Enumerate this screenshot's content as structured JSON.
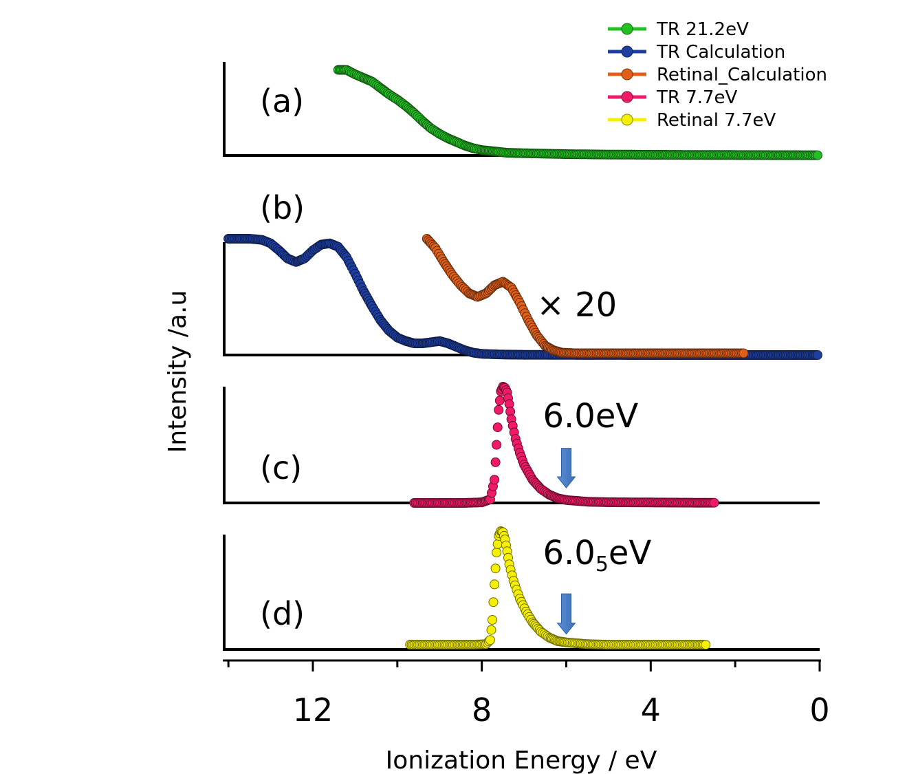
{
  "chart_data": {
    "type": "scatter",
    "title": "",
    "xlabel": "Ionization Energy / eV",
    "ylabel": "Intensity /a.u",
    "x_reversed": true,
    "xlim": [
      14.1,
      0
    ],
    "xticks_major": [
      12,
      8,
      4,
      0
    ],
    "xticks_minor": [
      14,
      10,
      6,
      2
    ],
    "grid": false,
    "legend_position": "top-right",
    "legend": [
      {
        "name": "TR 21.2eV",
        "color": "#22c022"
      },
      {
        "name": "TR Calculation",
        "color": "#1f3fa0"
      },
      {
        "name": "Retinal_Calculation",
        "color": "#e0601a"
      },
      {
        "name": "TR 7.7eV",
        "color": "#f01a68"
      },
      {
        "name": "Retinal 7.7eV",
        "color": "#f5f000"
      }
    ],
    "panels": [
      {
        "label": "(a)",
        "ylim": [
          0,
          1
        ],
        "annotations": [],
        "series": [
          {
            "name": "TR 21.2eV",
            "color": "#22c022",
            "points": [
              [
                11.4,
                0.95
              ],
              [
                11.2,
                0.95
              ],
              [
                11.0,
                0.9
              ],
              [
                10.8,
                0.86
              ],
              [
                10.6,
                0.82
              ],
              [
                10.4,
                0.75
              ],
              [
                10.2,
                0.68
              ],
              [
                10.0,
                0.62
              ],
              [
                9.8,
                0.55
              ],
              [
                9.6,
                0.47
              ],
              [
                9.4,
                0.38
              ],
              [
                9.2,
                0.3
              ],
              [
                9.0,
                0.24
              ],
              [
                8.8,
                0.19
              ],
              [
                8.6,
                0.15
              ],
              [
                8.4,
                0.11
              ],
              [
                8.2,
                0.08
              ],
              [
                8.0,
                0.06
              ],
              [
                7.8,
                0.05
              ],
              [
                7.6,
                0.04
              ],
              [
                7.4,
                0.03
              ],
              [
                7.0,
                0.025
              ],
              [
                6.5,
                0.02
              ],
              [
                6.0,
                0.015
              ],
              [
                5.0,
                0.01
              ],
              [
                4.0,
                0.008
              ],
              [
                3.0,
                0.006
              ],
              [
                2.0,
                0.005
              ],
              [
                1.0,
                0.004
              ],
              [
                0.05,
                0.003
              ]
            ]
          }
        ]
      },
      {
        "label": "(b)",
        "ylim": [
          0,
          1
        ],
        "annotations": [
          {
            "text": "× 20",
            "x": 5.95,
            "y": 0.43
          }
        ],
        "series": [
          {
            "name": "TR Calculation",
            "color": "#1f3fa0",
            "points": [
              [
                14.0,
                1.0
              ],
              [
                13.5,
                1.0
              ],
              [
                13.2,
                0.99
              ],
              [
                13.0,
                0.96
              ],
              [
                12.8,
                0.9
              ],
              [
                12.6,
                0.83
              ],
              [
                12.4,
                0.8
              ],
              [
                12.2,
                0.83
              ],
              [
                12.0,
                0.9
              ],
              [
                11.8,
                0.95
              ],
              [
                11.6,
                0.96
              ],
              [
                11.4,
                0.93
              ],
              [
                11.2,
                0.84
              ],
              [
                11.0,
                0.7
              ],
              [
                10.8,
                0.55
              ],
              [
                10.6,
                0.42
              ],
              [
                10.4,
                0.3
              ],
              [
                10.2,
                0.21
              ],
              [
                10.0,
                0.15
              ],
              [
                9.8,
                0.12
              ],
              [
                9.6,
                0.1
              ],
              [
                9.4,
                0.1
              ],
              [
                9.2,
                0.11
              ],
              [
                9.0,
                0.12
              ],
              [
                8.8,
                0.1
              ],
              [
                8.6,
                0.07
              ],
              [
                8.4,
                0.04
              ],
              [
                8.2,
                0.02
              ],
              [
                8.0,
                0.01
              ],
              [
                7.5,
                0.004
              ],
              [
                7.0,
                0.002
              ],
              [
                6.0,
                0.001
              ],
              [
                4.0,
                0.0
              ],
              [
                2.0,
                0.0
              ],
              [
                0.05,
                0.0
              ]
            ]
          },
          {
            "name": "Retinal_Calculation",
            "color": "#e0601a",
            "points": [
              [
                9.3,
                1.0
              ],
              [
                9.1,
                0.92
              ],
              [
                8.9,
                0.8
              ],
              [
                8.7,
                0.69
              ],
              [
                8.5,
                0.6
              ],
              [
                8.3,
                0.53
              ],
              [
                8.1,
                0.5
              ],
              [
                7.9,
                0.53
              ],
              [
                7.7,
                0.6
              ],
              [
                7.5,
                0.63
              ],
              [
                7.3,
                0.58
              ],
              [
                7.1,
                0.45
              ],
              [
                6.9,
                0.3
              ],
              [
                6.7,
                0.17
              ],
              [
                6.5,
                0.08
              ],
              [
                6.3,
                0.04
              ],
              [
                6.1,
                0.02
              ],
              [
                5.8,
                0.015
              ],
              [
                5.0,
                0.015
              ],
              [
                4.0,
                0.015
              ],
              [
                3.0,
                0.015
              ],
              [
                1.8,
                0.015
              ]
            ]
          }
        ]
      },
      {
        "label": "(c)",
        "ylim": [
          0,
          1
        ],
        "annotations": [
          {
            "text": "6.0eV",
            "x": 6.0,
            "arrow_top": 0.47,
            "arrow_bottom": 0.13,
            "label_y": 0.65
          }
        ],
        "series": [
          {
            "name": "TR 7.7eV",
            "color": "#f01a68",
            "points": [
              [
                9.6,
                0.0
              ],
              [
                9.0,
                0.0
              ],
              [
                8.4,
                0.0
              ],
              [
                8.0,
                0.005
              ],
              [
                7.8,
                0.03
              ],
              [
                7.7,
                0.2
              ],
              [
                7.65,
                0.5
              ],
              [
                7.6,
                0.8
              ],
              [
                7.55,
                0.96
              ],
              [
                7.5,
                1.0
              ],
              [
                7.45,
                0.99
              ],
              [
                7.4,
                0.95
              ],
              [
                7.35,
                0.85
              ],
              [
                7.3,
                0.72
              ],
              [
                7.2,
                0.55
              ],
              [
                7.1,
                0.43
              ],
              [
                7.0,
                0.33
              ],
              [
                6.8,
                0.2
              ],
              [
                6.6,
                0.12
              ],
              [
                6.4,
                0.07
              ],
              [
                6.2,
                0.04
              ],
              [
                6.0,
                0.025
              ],
              [
                5.5,
                0.01
              ],
              [
                5.0,
                0.006
              ],
              [
                4.0,
                0.004
              ],
              [
                3.0,
                0.002
              ],
              [
                2.5,
                0.002
              ]
            ]
          }
        ]
      },
      {
        "label": "(d)",
        "ylim": [
          0,
          1
        ],
        "annotations": [
          {
            "text": "6.0",
            "subscript": "5",
            "suffix": "eV",
            "x": 6.0,
            "arrow_top": 0.47,
            "arrow_bottom": 0.13,
            "label_y": 0.72
          }
        ],
        "series": [
          {
            "name": "Retinal 7.7eV",
            "color": "#f5f000",
            "points": [
              [
                9.7,
                0.04
              ],
              [
                9.2,
                0.04
              ],
              [
                8.6,
                0.04
              ],
              [
                8.2,
                0.04
              ],
              [
                7.9,
                0.045
              ],
              [
                7.8,
                0.08
              ],
              [
                7.75,
                0.25
              ],
              [
                7.7,
                0.55
              ],
              [
                7.65,
                0.82
              ],
              [
                7.6,
                0.96
              ],
              [
                7.55,
                1.0
              ],
              [
                7.5,
                0.99
              ],
              [
                7.45,
                0.93
              ],
              [
                7.4,
                0.83
              ],
              [
                7.35,
                0.72
              ],
              [
                7.25,
                0.58
              ],
              [
                7.1,
                0.43
              ],
              [
                6.95,
                0.32
              ],
              [
                6.8,
                0.23
              ],
              [
                6.6,
                0.15
              ],
              [
                6.4,
                0.1
              ],
              [
                6.2,
                0.07
              ],
              [
                6.0,
                0.06
              ],
              [
                5.5,
                0.045
              ],
              [
                5.0,
                0.04
              ],
              [
                4.0,
                0.04
              ],
              [
                3.0,
                0.04
              ],
              [
                2.7,
                0.04
              ]
            ]
          }
        ]
      }
    ]
  }
}
